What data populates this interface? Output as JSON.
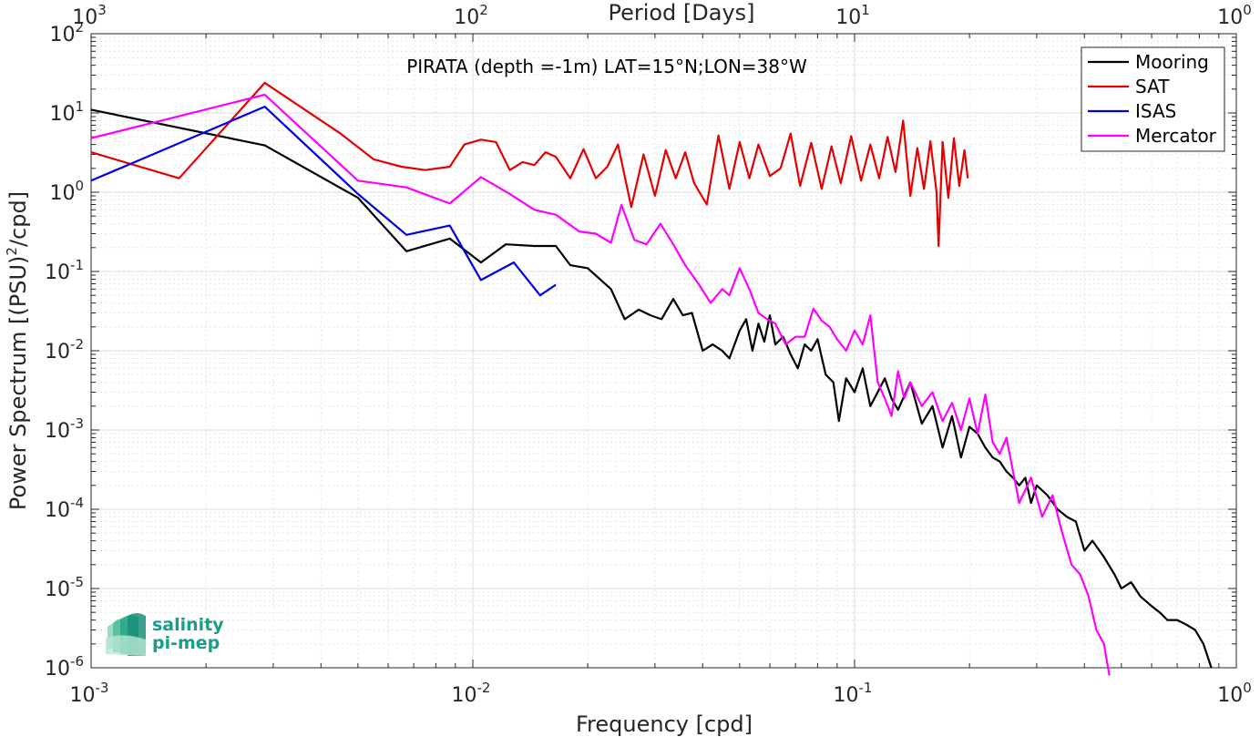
{
  "chart_data": {
    "type": "line",
    "title": "PIRATA (depth =-1m) LAT=15°N;LON=38°W",
    "xlabel": "Frequency [cpd]",
    "ylabel": "Power Spectrum [(PSU)",
    "ylabel_sup": "2",
    "ylabel_tail": "/cpd]",
    "top_xlabel": "Period [Days]",
    "x_scale": "log",
    "y_scale": "log",
    "xlim": [
      0.001,
      1
    ],
    "ylim": [
      1e-06,
      100
    ],
    "grid": true,
    "legend_position": "top-right",
    "x_ticks": [
      {
        "base": "10",
        "exp": "-3"
      },
      {
        "base": "10",
        "exp": "-2"
      },
      {
        "base": "10",
        "exp": "-1"
      },
      {
        "base": "10",
        "exp": "0"
      }
    ],
    "top_ticks": [
      {
        "base": "10",
        "exp": "3"
      },
      {
        "base": "10",
        "exp": "2"
      },
      {
        "base": "10",
        "exp": "1"
      },
      {
        "base": "10",
        "exp": "0"
      }
    ],
    "y_ticks": [
      {
        "base": "10",
        "exp": "2"
      },
      {
        "base": "10",
        "exp": "1"
      },
      {
        "base": "10",
        "exp": "0"
      },
      {
        "base": "10",
        "exp": "-1"
      },
      {
        "base": "10",
        "exp": "-2"
      },
      {
        "base": "10",
        "exp": "-3"
      },
      {
        "base": "10",
        "exp": "-4"
      },
      {
        "base": "10",
        "exp": "-5"
      },
      {
        "base": "10",
        "exp": "-6"
      }
    ],
    "series": [
      {
        "name": "Mooring",
        "color": "#000000",
        "x": [
          0.001,
          0.00285,
          0.005,
          0.0067,
          0.0087,
          0.0105,
          0.0122,
          0.0145,
          0.0165,
          0.018,
          0.02,
          0.023,
          0.025,
          0.0272,
          0.0292,
          0.0312,
          0.0335,
          0.0355,
          0.0375,
          0.04,
          0.0425,
          0.045,
          0.047,
          0.05,
          0.052,
          0.054,
          0.056,
          0.058,
          0.06,
          0.062,
          0.065,
          0.068,
          0.071,
          0.074,
          0.077,
          0.08,
          0.084,
          0.088,
          0.091,
          0.095,
          0.1,
          0.105,
          0.11,
          0.115,
          0.12,
          0.125,
          0.13,
          0.14,
          0.15,
          0.16,
          0.17,
          0.18,
          0.19,
          0.2,
          0.21,
          0.22,
          0.23,
          0.24,
          0.25,
          0.26,
          0.27,
          0.28,
          0.29,
          0.3,
          0.32,
          0.34,
          0.36,
          0.38,
          0.4,
          0.42,
          0.45,
          0.48,
          0.5,
          0.53,
          0.56,
          0.6,
          0.63,
          0.66,
          0.7,
          0.74,
          0.78,
          0.82,
          0.86
        ],
        "y": [
          11,
          3.9,
          0.85,
          0.18,
          0.26,
          0.13,
          0.22,
          0.21,
          0.21,
          0.12,
          0.11,
          0.06,
          0.025,
          0.033,
          0.028,
          0.025,
          0.045,
          0.028,
          0.03,
          0.01,
          0.012,
          0.01,
          0.008,
          0.018,
          0.025,
          0.01,
          0.022,
          0.013,
          0.028,
          0.012,
          0.015,
          0.009,
          0.006,
          0.012,
          0.01,
          0.014,
          0.005,
          0.004,
          0.0013,
          0.0045,
          0.003,
          0.006,
          0.002,
          0.003,
          0.0045,
          0.0025,
          0.0018,
          0.004,
          0.0012,
          0.002,
          0.0006,
          0.0015,
          0.00045,
          0.0011,
          0.0009,
          0.0006,
          0.00045,
          0.0004,
          0.0003,
          0.00025,
          0.0002,
          0.00025,
          0.00012,
          0.0002,
          0.00015,
          0.0001,
          8e-05,
          7e-05,
          3e-05,
          4e-05,
          2.5e-05,
          1.5e-05,
          1e-05,
          1.2e-05,
          8e-06,
          6e-06,
          5e-06,
          4e-06,
          4e-06,
          3.5e-06,
          3e-06,
          2e-06,
          1e-06
        ]
      },
      {
        "name": "SAT",
        "color": "#e60000",
        "x": [
          0.001,
          0.0017,
          0.00285,
          0.0045,
          0.0055,
          0.0065,
          0.0075,
          0.0087,
          0.0095,
          0.0105,
          0.0115,
          0.0125,
          0.0135,
          0.0145,
          0.0155,
          0.0165,
          0.018,
          0.0195,
          0.021,
          0.0225,
          0.024,
          0.026,
          0.028,
          0.03,
          0.032,
          0.034,
          0.036,
          0.038,
          0.041,
          0.044,
          0.047,
          0.05,
          0.053,
          0.056,
          0.06,
          0.064,
          0.068,
          0.072,
          0.077,
          0.082,
          0.087,
          0.092,
          0.098,
          0.104,
          0.11,
          0.116,
          0.122,
          0.128,
          0.134,
          0.14,
          0.146,
          0.152,
          0.158,
          0.164,
          0.166,
          0.17,
          0.176,
          0.182,
          0.188,
          0.194,
          0.198
        ],
        "y": [
          3.2,
          1.5,
          24,
          5.5,
          2.6,
          2.1,
          1.9,
          2.1,
          4.0,
          4.6,
          4.3,
          1.9,
          2.4,
          2.2,
          3.2,
          2.8,
          1.5,
          3.5,
          1.5,
          2.1,
          4.0,
          0.65,
          3.0,
          0.9,
          3.4,
          1.5,
          3.2,
          1.3,
          0.7,
          5.2,
          1.1,
          4.3,
          1.5,
          4.0,
          1.6,
          2.0,
          5.5,
          1.2,
          4.2,
          1.1,
          3.8,
          1.3,
          5.1,
          1.4,
          4.0,
          1.5,
          5.0,
          1.8,
          8.0,
          0.9,
          3.6,
          1.1,
          4.4,
          1.0,
          0.21,
          4.3,
          0.85,
          4.8,
          1.2,
          3.4,
          1.5
        ]
      },
      {
        "name": "ISAS",
        "color": "#0000e6",
        "x": [
          0.001,
          0.00285,
          0.005,
          0.0067,
          0.0087,
          0.0105,
          0.0128,
          0.015,
          0.0165
        ],
        "y": [
          1.4,
          12,
          0.95,
          0.29,
          0.38,
          0.078,
          0.13,
          0.05,
          0.068
        ]
      },
      {
        "name": "Mercator",
        "color": "#ff00ff",
        "x": [
          0.001,
          0.00285,
          0.005,
          0.0067,
          0.0087,
          0.0105,
          0.0125,
          0.0145,
          0.0165,
          0.019,
          0.021,
          0.023,
          0.0245,
          0.0265,
          0.0285,
          0.031,
          0.0335,
          0.036,
          0.039,
          0.042,
          0.045,
          0.047,
          0.05,
          0.053,
          0.056,
          0.059,
          0.062,
          0.066,
          0.07,
          0.074,
          0.078,
          0.082,
          0.086,
          0.09,
          0.095,
          0.1,
          0.105,
          0.11,
          0.115,
          0.12,
          0.125,
          0.13,
          0.135,
          0.14,
          0.15,
          0.16,
          0.17,
          0.18,
          0.19,
          0.2,
          0.21,
          0.22,
          0.23,
          0.24,
          0.25,
          0.27,
          0.29,
          0.31,
          0.33,
          0.35,
          0.37,
          0.39,
          0.41,
          0.43,
          0.45,
          0.465
        ],
        "y": [
          4.8,
          17,
          1.4,
          1.15,
          0.72,
          1.55,
          0.95,
          0.6,
          0.52,
          0.32,
          0.3,
          0.23,
          0.69,
          0.25,
          0.22,
          0.4,
          0.22,
          0.12,
          0.07,
          0.04,
          0.06,
          0.05,
          0.11,
          0.06,
          0.03,
          0.025,
          0.022,
          0.012,
          0.015,
          0.015,
          0.034,
          0.024,
          0.02,
          0.014,
          0.01,
          0.018,
          0.012,
          0.028,
          0.004,
          0.0025,
          0.0015,
          0.0055,
          0.0025,
          0.004,
          0.002,
          0.003,
          0.0013,
          0.0022,
          0.001,
          0.0025,
          0.0009,
          0.0028,
          0.0007,
          0.0005,
          0.0008,
          0.00012,
          0.00025,
          8e-05,
          0.00015,
          5e-05,
          2e-05,
          1.5e-05,
          8e-06,
          3e-06,
          2e-06,
          8e-07
        ]
      }
    ]
  },
  "logo": {
    "line1": "salinity",
    "line2": "pi-mep"
  }
}
